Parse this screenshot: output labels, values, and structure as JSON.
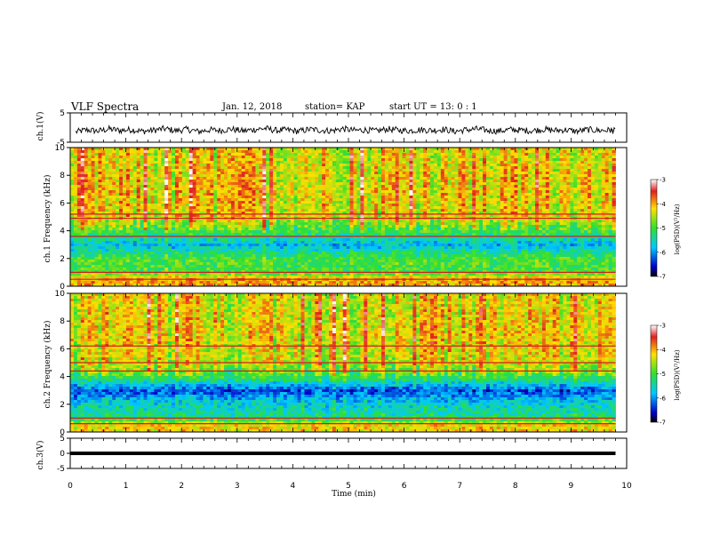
{
  "header": {
    "title": "VLF Spectra",
    "date": "Jan. 12, 2018",
    "station": "station= KAP",
    "start": "start  UT =   13: 0  : 1"
  },
  "chart_data": [
    {
      "type": "line",
      "panel": "ch1-waveform",
      "ylabel": "ch.1(V)",
      "ylim": [
        -5,
        5
      ],
      "yticks": [
        "5",
        "-5"
      ],
      "xlim": [
        0,
        10
      ],
      "series": [
        {
          "x": [
            0.1,
            0.3,
            0.5,
            0.7,
            0.9,
            1.1,
            1.3,
            1.5,
            1.7,
            1.9,
            2.1,
            2.3,
            2.5,
            2.7,
            2.9,
            3.1,
            3.3,
            3.5,
            3.7,
            3.9,
            4.1,
            4.3,
            4.5,
            4.7,
            4.9,
            5.1,
            5.3,
            5.5,
            5.7,
            5.9,
            6.1,
            6.3,
            6.5,
            6.7,
            6.9,
            7.1,
            7.3,
            7.5,
            7.7,
            7.9,
            8.1,
            8.3,
            8.5,
            8.7,
            8.9,
            9.1,
            9.3,
            9.5,
            9.7,
            9.8
          ],
          "y": [
            -1.5,
            -0.8,
            -1.2,
            -0.5,
            -1.0,
            -0.7,
            -1.3,
            -0.9,
            -0.4,
            -1.1,
            -0.6,
            -1.4,
            -0.8,
            -1.0,
            -0.5,
            -1.2,
            -0.7,
            -0.3,
            -1.0,
            -0.8,
            -1.3,
            -0.6,
            -0.9,
            -1.1,
            -0.4,
            -1.0,
            -0.8,
            -1.2,
            -0.5,
            -0.9,
            -1.1,
            -0.7,
            -1.0,
            -0.6,
            -1.3,
            -0.8,
            -0.5,
            -1.0,
            -1.2,
            -0.7,
            -0.9,
            -1.1,
            -0.6,
            -1.0,
            -0.8,
            -1.3,
            -0.7,
            -1.0,
            -0.9,
            -1.2
          ]
        }
      ]
    },
    {
      "type": "heatmap",
      "panel": "ch1-spectrogram",
      "xlabel": "",
      "ylabel": "ch.1\nFrequency (kHz)",
      "ylim": [
        0,
        10
      ],
      "yticks": [
        "0",
        "2",
        "4",
        "6",
        "8",
        "10"
      ],
      "colorbar": {
        "label": "log(PSD)(V²/Hz)",
        "range": [
          -7,
          -3
        ],
        "ticks": [
          "-3",
          "-4",
          "-5",
          "-6",
          "-7"
        ]
      },
      "frequency_bands_kHz": [
        0.5,
        1.0,
        2.0,
        3.0,
        4.0,
        5.0,
        7.0,
        9.0
      ],
      "band_log_psd": [
        -4.0,
        -5.0,
        -5.0,
        -5.8,
        -5.0,
        -4.3,
        -4.2,
        -4.3
      ]
    },
    {
      "type": "heatmap",
      "panel": "ch2-spectrogram",
      "ylabel": "ch.2\nFrequency (kHz)",
      "ylim": [
        0,
        10
      ],
      "yticks": [
        "0",
        "2",
        "4",
        "6",
        "8",
        "10"
      ],
      "colorbar": {
        "label": "log(PSD)(V²/Hz)",
        "range": [
          -7,
          -3
        ],
        "ticks": [
          "-3",
          "-4",
          "-5",
          "-6",
          "-7"
        ]
      },
      "frequency_bands_kHz": [
        0.5,
        1.0,
        2.0,
        3.0,
        4.0,
        5.0,
        7.0,
        9.0
      ],
      "band_log_psd": [
        -4.2,
        -5.3,
        -5.6,
        -6.3,
        -5.0,
        -4.4,
        -4.2,
        -4.3
      ]
    },
    {
      "type": "line",
      "panel": "ch3-waveform",
      "xlabel": "Time (min)",
      "ylabel": "ch.3(V)",
      "ylim": [
        -5,
        5
      ],
      "yticks": [
        "5",
        "0",
        "-5"
      ],
      "xlim": [
        0,
        10
      ],
      "xticks": [
        "0",
        "1",
        "2",
        "3",
        "4",
        "5",
        "6",
        "7",
        "8",
        "9",
        "10"
      ],
      "series": [
        {
          "x": [
            0,
            9.8
          ],
          "y": [
            0,
            0
          ]
        }
      ]
    }
  ]
}
